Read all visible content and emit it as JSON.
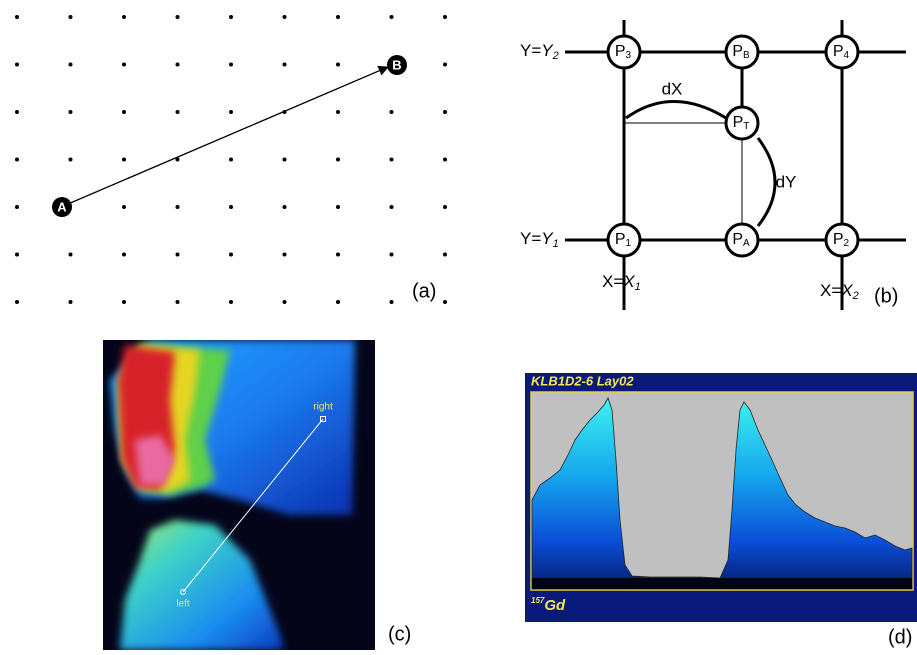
{
  "panels": [
    {
      "label": "(a)",
      "points": {
        "start": "A",
        "end": "B"
      }
    },
    {
      "label": "(b)",
      "nodes": [
        {
          "main": "P",
          "sub": "3"
        },
        {
          "main": "P",
          "sub": "B"
        },
        {
          "main": "P",
          "sub": "4"
        },
        {
          "main": "P",
          "sub": "T"
        },
        {
          "main": "P",
          "sub": "1"
        },
        {
          "main": "P",
          "sub": "A"
        },
        {
          "main": "P",
          "sub": "2"
        }
      ],
      "axes": [
        {
          "prefix": "Y=",
          "var": "Y",
          "sub": "2"
        },
        {
          "prefix": "Y=",
          "var": "Y",
          "sub": "1"
        },
        {
          "prefix": "X=",
          "var": "X",
          "sub": "1"
        },
        {
          "prefix": "X=",
          "var": "X",
          "sub": "2"
        }
      ],
      "arcs": {
        "dx": "dX",
        "dy": "dY"
      }
    },
    {
      "label": "(c)",
      "markers": {
        "right": "right",
        "left": "left"
      }
    },
    {
      "label": "(d)",
      "title": "KLB1D2-6 Lay02",
      "isotope": {
        "mass": "157",
        "symbol": "Gd"
      }
    }
  ]
}
